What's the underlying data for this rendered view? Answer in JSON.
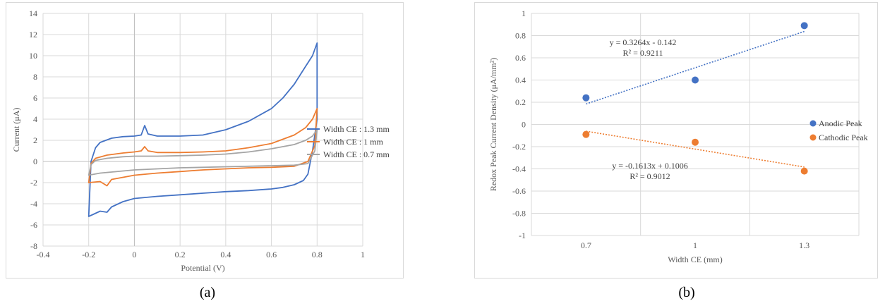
{
  "captions": {
    "a": "(a)",
    "b": "(b)"
  },
  "chart_data": [
    {
      "type": "line",
      "xlabel": "Potential (V)",
      "ylabel": "Current (μA)",
      "xlim": [
        -0.4,
        1
      ],
      "ylim": [
        -8,
        14
      ],
      "xticks": [
        "-0.4",
        "-0.2",
        "0",
        "0.2",
        "0.4",
        "0.6",
        "0.8",
        "1"
      ],
      "yticks": [
        "-8",
        "-6",
        "-4",
        "-2",
        "0",
        "2",
        "4",
        "6",
        "8",
        "10",
        "12",
        "14"
      ],
      "grid": "vertical and horizontal",
      "legend_position": "right",
      "series": [
        {
          "name": "Width CE : 1.3 mm",
          "color": "#4472C4",
          "x": [
            -0.2,
            -0.19,
            -0.17,
            -0.15,
            -0.1,
            -0.05,
            0,
            0.03,
            0.045,
            0.06,
            0.1,
            0.2,
            0.3,
            0.4,
            0.5,
            0.6,
            0.65,
            0.7,
            0.75,
            0.78,
            0.8,
            0.8,
            0.78,
            0.76,
            0.74,
            0.7,
            0.65,
            0.6,
            0.5,
            0.4,
            0.3,
            0.2,
            0.1,
            0,
            -0.05,
            -0.1,
            -0.12,
            -0.15,
            -0.18,
            -0.2
          ],
          "y": [
            -5.2,
            0,
            1.3,
            1.8,
            2.2,
            2.35,
            2.4,
            2.5,
            3.4,
            2.6,
            2.4,
            2.4,
            2.5,
            3.0,
            3.8,
            5.0,
            6.0,
            7.3,
            9.0,
            10.0,
            11.2,
            4.0,
            1.0,
            -1.2,
            -1.8,
            -2.2,
            -2.45,
            -2.6,
            -2.75,
            -2.85,
            -3.0,
            -3.15,
            -3.3,
            -3.5,
            -3.8,
            -4.3,
            -4.8,
            -4.7,
            -5.0,
            -5.2
          ],
          "closed": true
        },
        {
          "name": "Width CE : 1 mm",
          "color": "#ED7D31",
          "x": [
            -0.2,
            -0.19,
            -0.17,
            -0.12,
            -0.05,
            0,
            0.03,
            0.045,
            0.06,
            0.1,
            0.2,
            0.3,
            0.4,
            0.5,
            0.6,
            0.7,
            0.75,
            0.78,
            0.8,
            0.79,
            0.76,
            0.7,
            0.6,
            0.5,
            0.4,
            0.3,
            0.2,
            0.1,
            0,
            -0.05,
            -0.1,
            -0.12,
            -0.15,
            -0.2
          ],
          "y": [
            -2.0,
            -0.2,
            0.3,
            0.6,
            0.8,
            0.9,
            1.0,
            1.4,
            1.0,
            0.85,
            0.85,
            0.9,
            1.0,
            1.3,
            1.7,
            2.5,
            3.2,
            4.0,
            5.0,
            1.5,
            0.0,
            -0.45,
            -0.55,
            -0.6,
            -0.7,
            -0.8,
            -0.95,
            -1.1,
            -1.3,
            -1.5,
            -1.7,
            -2.3,
            -1.9,
            -2.0
          ],
          "closed": true
        },
        {
          "name": "Width CE : 0.7 mm",
          "color": "#A5A5A5",
          "x": [
            -0.2,
            -0.19,
            -0.17,
            -0.12,
            -0.05,
            0,
            0.1,
            0.2,
            0.3,
            0.4,
            0.5,
            0.6,
            0.7,
            0.75,
            0.78,
            0.8,
            0.79,
            0.76,
            0.7,
            0.6,
            0.5,
            0.4,
            0.3,
            0.2,
            0.1,
            0,
            -0.05,
            -0.1,
            -0.15,
            -0.2
          ],
          "y": [
            -1.3,
            -0.3,
            0.1,
            0.3,
            0.45,
            0.5,
            0.5,
            0.55,
            0.6,
            0.7,
            0.9,
            1.2,
            1.6,
            2.0,
            2.4,
            3.0,
            1.0,
            -0.2,
            -0.35,
            -0.4,
            -0.45,
            -0.5,
            -0.55,
            -0.6,
            -0.7,
            -0.8,
            -0.9,
            -1.0,
            -1.1,
            -1.3
          ],
          "closed": true
        }
      ]
    },
    {
      "type": "scatter",
      "xlabel": "Width CE (mm)",
      "ylabel": "Redox Peak Current Density (μA/mm²)",
      "categories": [
        "0.7",
        "1",
        "1.3"
      ],
      "ylim": [
        -1,
        1
      ],
      "yticks": [
        "-1",
        "-0.8",
        "-0.6",
        "-0.4",
        "-0.2",
        "0",
        "0.2",
        "0.4",
        "0.6",
        "0.8",
        "1"
      ],
      "grid": "vertical and horizontal",
      "legend_position": "right",
      "series": [
        {
          "name": "Anodic Peak",
          "color": "#4472C4",
          "values": [
            0.24,
            0.4,
            0.89
          ],
          "trendline": {
            "slope": 0.3264,
            "intercept": -0.142,
            "equation": "y = 0.3264x - 0.142",
            "r2": "R² = 0.9211"
          }
        },
        {
          "name": "Cathodic Peak",
          "color": "#ED7D31",
          "values": [
            -0.09,
            -0.16,
            -0.42
          ],
          "trendline": {
            "slope": -0.1613,
            "intercept": 0.1006,
            "equation": "y = -0.1613x + 0.1006",
            "r2": "R² = 0.9012"
          }
        }
      ]
    }
  ]
}
